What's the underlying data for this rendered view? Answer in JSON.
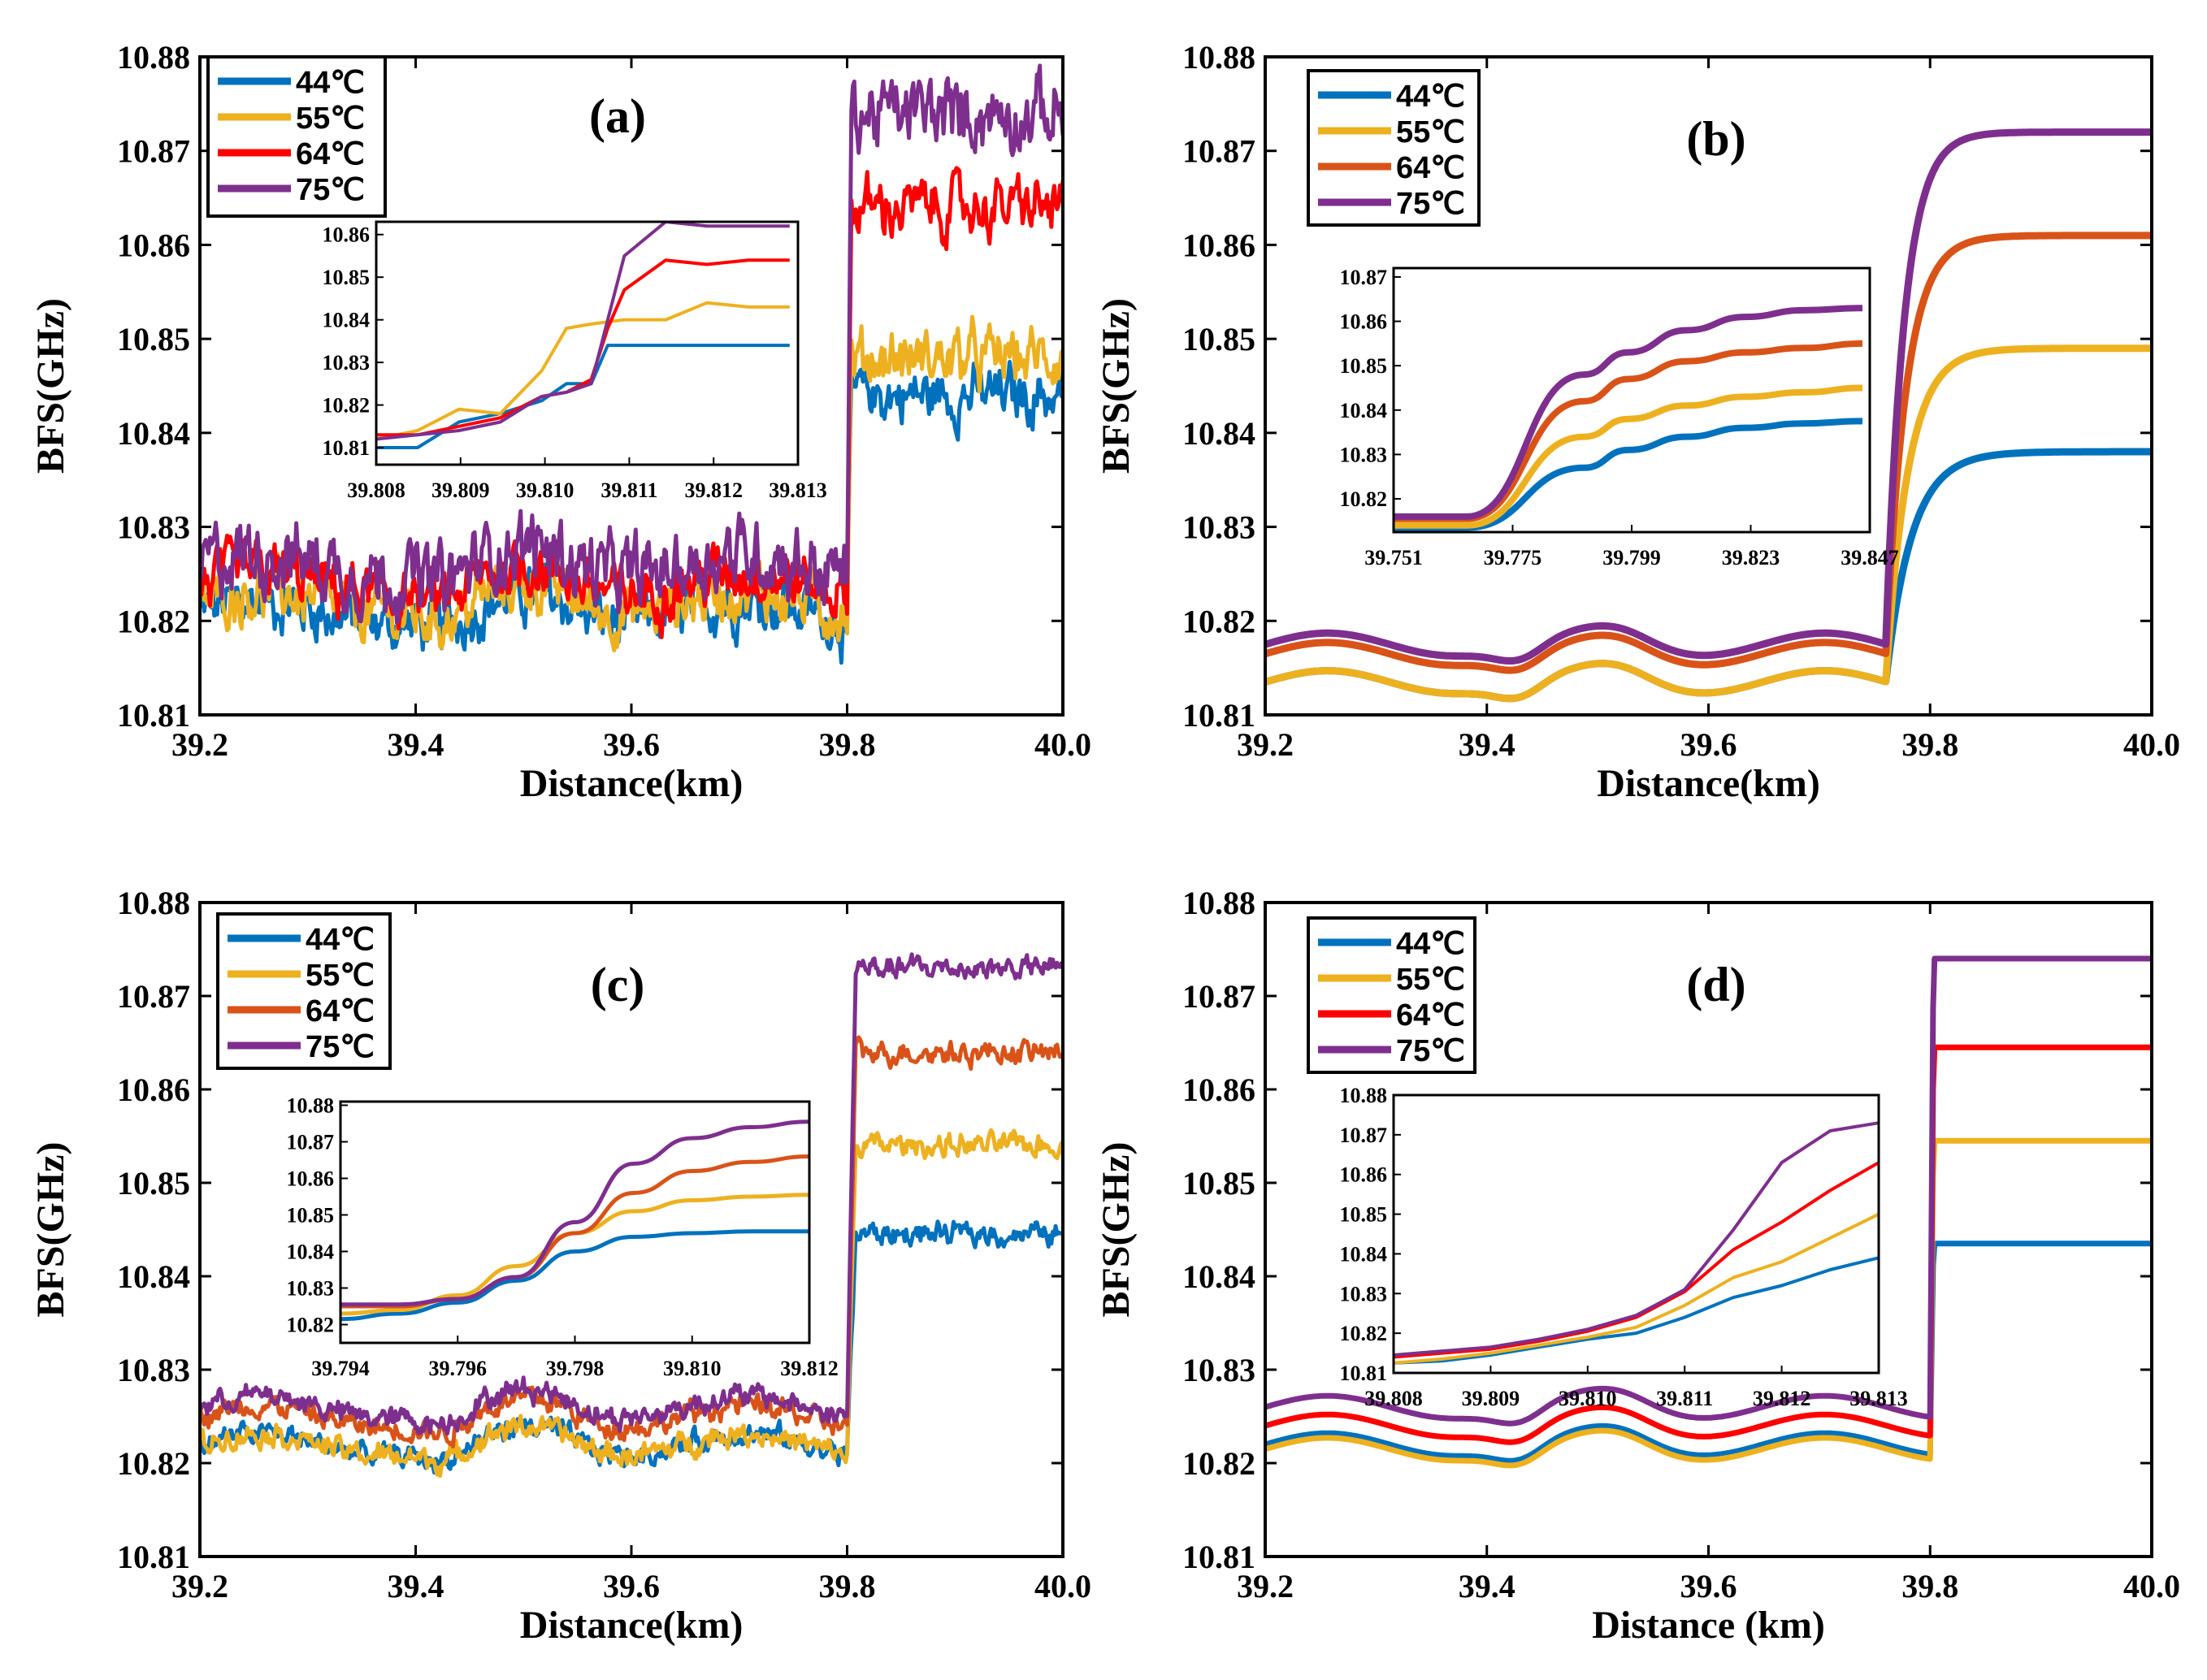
{
  "figure": {
    "description_panels": [
      "a",
      "b",
      "c",
      "d"
    ]
  },
  "colors": {
    "blue": "#0072BD",
    "yellow": "#EDB120",
    "red": "#FF0000",
    "orange": "#D95319",
    "purple": "#7E2F8E"
  },
  "chart_data": [
    {
      "id": "a",
      "type": "line",
      "title": "(a)",
      "xlabel": "Distance(km)",
      "ylabel": "BFS(GHz)",
      "xlim": [
        39.2,
        40.0
      ],
      "ylim": [
        10.81,
        10.88
      ],
      "xticks": [
        "39.2",
        "39.4",
        "39.6",
        "39.8",
        "40.0"
      ],
      "yticks": [
        "10.81",
        "10.82",
        "10.83",
        "10.84",
        "10.85",
        "10.86",
        "10.87",
        "10.88"
      ],
      "legend": [
        "44℃",
        "55℃",
        "64℃",
        "75℃"
      ],
      "legend_position": "top-left",
      "series": [
        {
          "name": "44℃",
          "color": "#0072BD",
          "low": 10.821,
          "high": 10.844,
          "noise": 0.0022,
          "step_at": 39.8,
          "edge": 0.004
        },
        {
          "name": "55℃",
          "color": "#EDB120",
          "low": 10.822,
          "high": 10.848,
          "noise": 0.0022,
          "step_at": 39.8,
          "edge": 0.004
        },
        {
          "name": "64℃",
          "color": "#FF0000",
          "low": 10.824,
          "high": 10.864,
          "noise": 0.0022,
          "step_at": 39.8,
          "edge": 0.004
        },
        {
          "name": "75℃",
          "color": "#7E2F8E",
          "low": 10.826,
          "high": 10.874,
          "noise": 0.0028,
          "step_at": 39.8,
          "edge": 0.004
        }
      ],
      "inset": {
        "xticks": [
          "39.808",
          "39.809",
          "39.810",
          "39.811",
          "39.812",
          "39.813"
        ],
        "yticks": [
          "10.81",
          "10.82",
          "10.83",
          "10.84",
          "10.85",
          "10.86"
        ],
        "xlim": [
          39.808,
          39.8131
        ],
        "ylim": [
          10.806,
          10.863
        ],
        "series": [
          {
            "name": "44℃",
            "x": [
              39.808,
              39.8085,
              39.809,
              39.8095,
              39.81,
              39.8103,
              39.8106,
              39.8108,
              39.811,
              39.8115,
              39.812,
              39.8125,
              39.813
            ],
            "y": [
              10.81,
              10.81,
              10.816,
              10.818,
              10.821,
              10.825,
              10.825,
              10.834,
              10.834,
              10.834,
              10.834,
              10.834,
              10.834
            ]
          },
          {
            "name": "55℃",
            "x": [
              39.808,
              39.8085,
              39.809,
              39.8095,
              39.81,
              39.8103,
              39.8106,
              39.811,
              39.8115,
              39.812,
              39.8125,
              39.813
            ],
            "y": [
              10.812,
              10.814,
              10.819,
              10.818,
              10.828,
              10.838,
              10.839,
              10.84,
              10.84,
              10.844,
              10.843,
              10.843
            ]
          },
          {
            "name": "64℃",
            "x": [
              39.808,
              39.8085,
              39.809,
              39.8095,
              39.81,
              39.8103,
              39.8106,
              39.8108,
              39.811,
              39.8115,
              39.812,
              39.8125,
              39.813
            ],
            "y": [
              10.813,
              10.813,
              10.815,
              10.817,
              10.822,
              10.823,
              10.826,
              10.838,
              10.847,
              10.854,
              10.853,
              10.854,
              10.854
            ]
          },
          {
            "name": "75℃",
            "x": [
              39.808,
              39.8085,
              39.809,
              39.8095,
              39.81,
              39.8103,
              39.8106,
              39.8108,
              39.811,
              39.8115,
              39.812,
              39.8125,
              39.813
            ],
            "y": [
              10.812,
              10.813,
              10.814,
              10.816,
              10.822,
              10.823,
              10.825,
              10.84,
              10.855,
              10.863,
              10.862,
              10.862,
              10.862
            ]
          }
        ]
      }
    },
    {
      "id": "b",
      "type": "line",
      "title": "(b)",
      "xlabel": "Distance(km)",
      "ylabel": "BFS(GHz)",
      "xlim": [
        39.2,
        40.0
      ],
      "ylim": [
        10.81,
        10.88
      ],
      "xticks": [
        "39.2",
        "39.4",
        "39.6",
        "39.8",
        "40.0"
      ],
      "yticks": [
        "10.81",
        "10.82",
        "10.83",
        "10.84",
        "10.85",
        "10.86",
        "10.87",
        "10.88"
      ],
      "legend": [
        "44℃",
        "55℃",
        "64℃",
        "75℃"
      ],
      "legend_position": "top-left",
      "series": [
        {
          "name": "44℃",
          "color": "#0072BD",
          "low": 10.8135,
          "high": 10.838,
          "noise": 0.0,
          "step_at": 39.76,
          "edge": 0.07
        },
        {
          "name": "55℃",
          "color": "#EDB120",
          "low": 10.8135,
          "high": 10.849,
          "noise": 0.0,
          "step_at": 39.76,
          "edge": 0.06
        },
        {
          "name": "64℃",
          "color": "#D95319",
          "low": 10.8165,
          "high": 10.861,
          "noise": 0.0,
          "step_at": 39.76,
          "edge": 0.055
        },
        {
          "name": "75℃",
          "color": "#7E2F8E",
          "low": 10.8175,
          "high": 10.872,
          "noise": 0.0,
          "step_at": 39.76,
          "edge": 0.05
        }
      ],
      "inset": {
        "xticks": [
          "39.751",
          "39.775",
          "39.799",
          "39.823",
          "39.847"
        ],
        "yticks": [
          "10.82",
          "10.83",
          "10.84",
          "10.85",
          "10.86",
          "10.87"
        ],
        "xlim": [
          39.751,
          39.8485
        ],
        "ylim": [
          10.8125,
          10.872
        ],
        "series": [
          {
            "name": "44℃",
            "x": [
              39.751,
              39.766,
              39.79,
              39.799,
              39.811,
              39.823,
              39.835,
              39.847
            ],
            "y": [
              10.8135,
              10.8135,
              10.827,
              10.831,
              10.834,
              10.836,
              10.837,
              10.8375
            ]
          },
          {
            "name": "55℃",
            "x": [
              39.751,
              39.766,
              39.79,
              39.799,
              39.811,
              39.823,
              39.835,
              39.847
            ],
            "y": [
              10.814,
              10.814,
              10.834,
              10.838,
              10.841,
              10.843,
              10.844,
              10.845
            ]
          },
          {
            "name": "64℃",
            "x": [
              39.751,
              39.766,
              39.79,
              39.799,
              39.811,
              39.823,
              39.835,
              39.847
            ],
            "y": [
              10.8155,
              10.8155,
              10.842,
              10.847,
              10.851,
              10.853,
              10.854,
              10.855
            ]
          },
          {
            "name": "75℃",
            "x": [
              39.751,
              39.766,
              39.79,
              39.799,
              39.811,
              39.823,
              39.835,
              39.847
            ],
            "y": [
              10.816,
              10.816,
              10.848,
              10.853,
              10.858,
              10.861,
              10.8625,
              10.863
            ]
          }
        ]
      }
    },
    {
      "id": "c",
      "type": "line",
      "title": "(c)",
      "xlabel": "Distance(km)",
      "ylabel": "BFS(GHz)",
      "xlim": [
        39.2,
        40.0
      ],
      "ylim": [
        10.81,
        10.88
      ],
      "xticks": [
        "39.2",
        "39.4",
        "39.6",
        "39.8",
        "40.0"
      ],
      "yticks": [
        "10.81",
        "10.82",
        "10.83",
        "10.84",
        "10.85",
        "10.86",
        "10.87",
        "10.88"
      ],
      "legend": [
        "44℃",
        "55℃",
        "64℃",
        "75℃"
      ],
      "legend_position": "top-left",
      "series": [
        {
          "name": "44℃",
          "color": "#0072BD",
          "low": 10.822,
          "high": 10.8445,
          "noise": 0.0009,
          "step_at": 39.8,
          "edge": 0.008
        },
        {
          "name": "55℃",
          "color": "#EDB120",
          "low": 10.822,
          "high": 10.854,
          "noise": 0.0009,
          "step_at": 39.8,
          "edge": 0.008
        },
        {
          "name": "64℃",
          "color": "#D95319",
          "low": 10.825,
          "high": 10.864,
          "noise": 0.0009,
          "step_at": 39.8,
          "edge": 0.008
        },
        {
          "name": "75℃",
          "color": "#7E2F8E",
          "low": 10.826,
          "high": 10.873,
          "noise": 0.0009,
          "step_at": 39.8,
          "edge": 0.008
        }
      ],
      "inset": {
        "xticks": [
          "39.794",
          "39.796",
          "39.798",
          "39.810",
          "39.812"
        ],
        "yticks": [
          "10.82",
          "10.83",
          "10.84",
          "10.85",
          "10.86",
          "10.87",
          "10.88"
        ],
        "xlim": [
          0,
          4
        ],
        "ylim": [
          10.815,
          10.881
        ],
        "series": [
          {
            "name": "44℃",
            "x": [
              0,
              0.5,
              1,
              1.5,
              2,
              2.5,
              3,
              3.5,
              4
            ],
            "y": [
              10.8215,
              10.823,
              10.826,
              10.832,
              10.84,
              10.844,
              10.845,
              10.8455,
              10.8455
            ]
          },
          {
            "name": "55℃",
            "x": [
              0,
              0.5,
              1,
              1.5,
              2,
              2.5,
              3,
              3.5,
              4
            ],
            "y": [
              10.823,
              10.824,
              10.828,
              10.836,
              10.845,
              10.851,
              10.854,
              10.855,
              10.8555
            ]
          },
          {
            "name": "64℃",
            "x": [
              0,
              0.5,
              1,
              1.5,
              2,
              2.5,
              3,
              3.5,
              4
            ],
            "y": [
              10.825,
              10.825,
              10.827,
              10.833,
              10.845,
              10.856,
              10.862,
              10.8645,
              10.866
            ]
          },
          {
            "name": "75℃",
            "x": [
              0,
              0.5,
              1,
              1.5,
              2,
              2.5,
              3,
              3.5,
              4
            ],
            "y": [
              10.8255,
              10.8255,
              10.827,
              10.833,
              10.848,
              10.864,
              10.871,
              10.874,
              10.8755
            ]
          }
        ]
      }
    },
    {
      "id": "d",
      "type": "line",
      "title": "(d)",
      "xlabel": "Distance (km)",
      "ylabel": "BFS(GHz)",
      "xlim": [
        39.2,
        40.0
      ],
      "ylim": [
        10.81,
        10.88
      ],
      "xticks": [
        "39.2",
        "39.4",
        "39.6",
        "39.8",
        "40.0"
      ],
      "yticks": [
        "10.81",
        "10.82",
        "10.83",
        "10.84",
        "10.85",
        "10.86",
        "10.87",
        "10.88"
      ],
      "legend": [
        "44℃",
        "55℃",
        "64℃",
        "75℃"
      ],
      "legend_position": "top-left",
      "series": [
        {
          "name": "44℃",
          "color": "#0072BD",
          "low": 10.822,
          "high": 10.8435,
          "noise": 0.0,
          "step_at": 39.8,
          "edge": 0.003
        },
        {
          "name": "55℃",
          "color": "#EDB120",
          "low": 10.8215,
          "high": 10.8545,
          "noise": 0.0,
          "step_at": 39.8,
          "edge": 0.003
        },
        {
          "name": "64℃",
          "color": "#FF0000",
          "low": 10.824,
          "high": 10.8645,
          "noise": 0.0,
          "step_at": 39.8,
          "edge": 0.003
        },
        {
          "name": "75℃",
          "color": "#7E2F8E",
          "low": 10.826,
          "high": 10.874,
          "noise": 0.0,
          "step_at": 39.8,
          "edge": 0.003
        }
      ],
      "inset": {
        "xticks": [
          "39.808",
          "39.809",
          "39.810",
          "39.811",
          "39.812",
          "39.813"
        ],
        "yticks": [
          "10.81",
          "10.82",
          "10.83",
          "10.84",
          "10.85",
          "10.86",
          "10.87",
          "10.88"
        ],
        "xlim": [
          39.808,
          39.813
        ],
        "ylim": [
          10.81,
          10.88
        ],
        "series": [
          {
            "name": "44℃",
            "x": [
              39.808,
              39.8085,
              39.809,
              39.8095,
              39.81,
              39.8105,
              39.811,
              39.8115,
              39.812,
              39.8125,
              39.813
            ],
            "y": [
              10.8125,
              10.813,
              10.8145,
              10.8165,
              10.8185,
              10.82,
              10.824,
              10.829,
              10.832,
              10.836,
              10.839
            ]
          },
          {
            "name": "55℃",
            "x": [
              39.808,
              39.8085,
              39.809,
              39.8095,
              39.81,
              39.8105,
              39.811,
              39.8115,
              39.812,
              39.8125,
              39.813
            ],
            "y": [
              10.8125,
              10.8135,
              10.815,
              10.817,
              10.819,
              10.8215,
              10.827,
              10.834,
              10.838,
              10.844,
              10.85
            ]
          },
          {
            "name": "64℃",
            "x": [
              39.808,
              39.8085,
              39.809,
              39.8095,
              39.81,
              39.8105,
              39.811,
              39.8115,
              39.812,
              39.8125,
              39.813
            ],
            "y": [
              10.814,
              10.815,
              10.816,
              10.818,
              10.8205,
              10.824,
              10.8305,
              10.841,
              10.848,
              10.856,
              10.863
            ]
          },
          {
            "name": "75℃",
            "x": [
              39.808,
              39.8085,
              39.809,
              39.8095,
              39.81,
              39.8105,
              39.811,
              39.8115,
              39.812,
              39.8125,
              39.813
            ],
            "y": [
              10.8145,
              10.8155,
              10.8165,
              10.8185,
              10.821,
              10.8245,
              10.831,
              10.846,
              10.863,
              10.871,
              10.873
            ]
          }
        ]
      }
    }
  ]
}
